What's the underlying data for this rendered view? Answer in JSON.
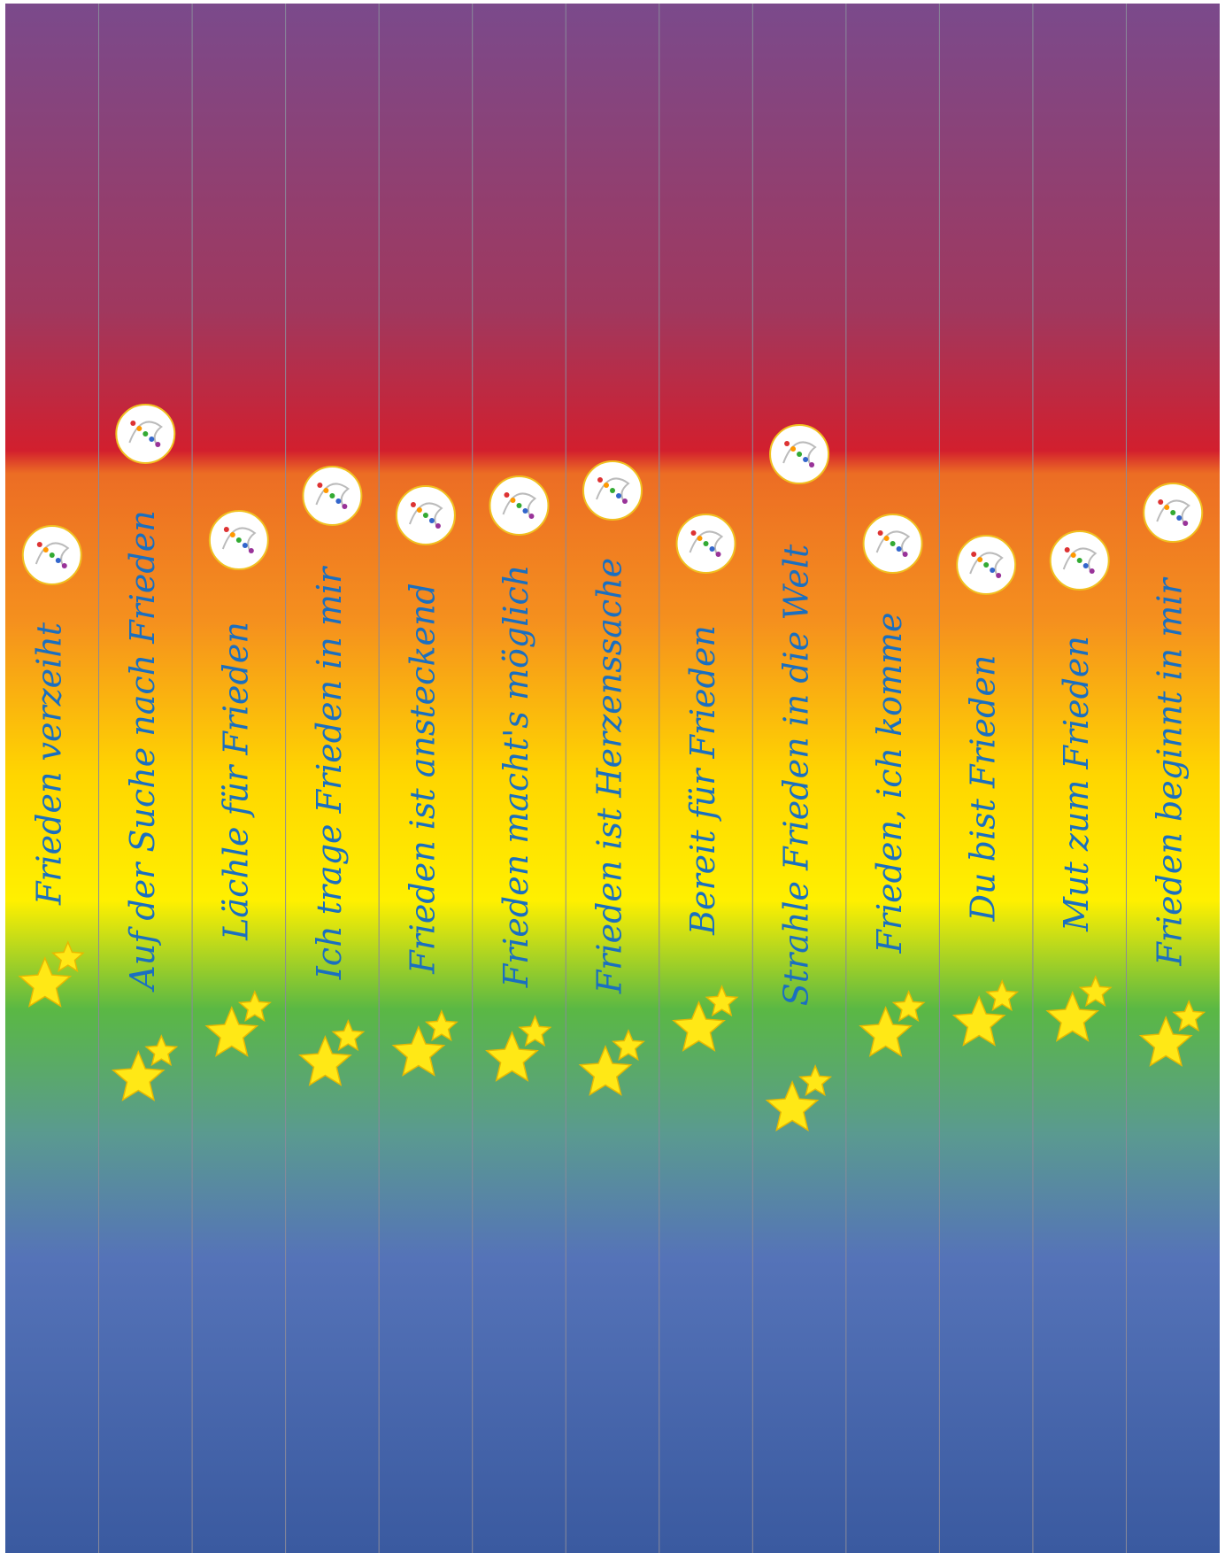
{
  "bookmarks": [
    {
      "text": "Frieden verzeiht"
    },
    {
      "text": "Auf der Suche nach Frieden"
    },
    {
      "text": "Lächle für Frieden"
    },
    {
      "text": "Ich trage Frieden in mir"
    },
    {
      "text": "Frieden ist ansteckend"
    },
    {
      "text": "Frieden macht's möglich"
    },
    {
      "text": "Frieden ist Herzenssache"
    },
    {
      "text": "Bereit für Frieden"
    },
    {
      "text": "Strahle Frieden in die Welt"
    },
    {
      "text": "Frieden, ich komme"
    },
    {
      "text": "Du bist Frieden"
    },
    {
      "text": "Mut zum Frieden"
    },
    {
      "text": "Frieden beginnt in mir"
    }
  ]
}
